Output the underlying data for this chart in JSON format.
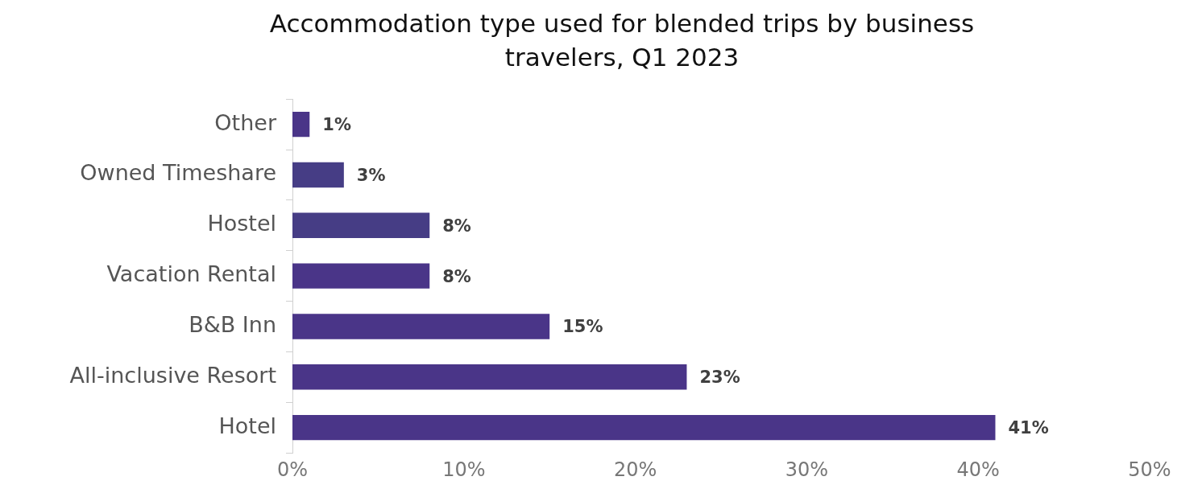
{
  "chart_data": {
    "type": "bar",
    "orientation": "horizontal",
    "title": "Accommodation type used for blended trips by business travelers, Q1 2023",
    "categories": [
      "Other",
      "Owned Timeshare",
      "Hostel",
      "Vacation Rental",
      "B&B Inn",
      "All-inclusive Resort",
      "Hotel"
    ],
    "values": [
      1,
      3,
      8,
      8,
      15,
      23,
      41
    ],
    "value_labels": [
      "1%",
      "3%",
      "8%",
      "8%",
      "15%",
      "23%",
      "41%"
    ],
    "colors": [
      "#4a3588",
      "#463d85",
      "#463d85",
      "#4a3588",
      "#4a3588",
      "#4a3588",
      "#4a3588"
    ],
    "xlim": [
      0,
      50
    ],
    "xticks": [
      {
        "value": 0,
        "label": "0%"
      },
      {
        "value": 10,
        "label": "10%"
      },
      {
        "value": 20,
        "label": "20%"
      },
      {
        "value": 30,
        "label": "30%"
      },
      {
        "value": 40,
        "label": "40%"
      },
      {
        "value": 50,
        "label": "50%"
      }
    ],
    "grid": false,
    "legend": false
  }
}
